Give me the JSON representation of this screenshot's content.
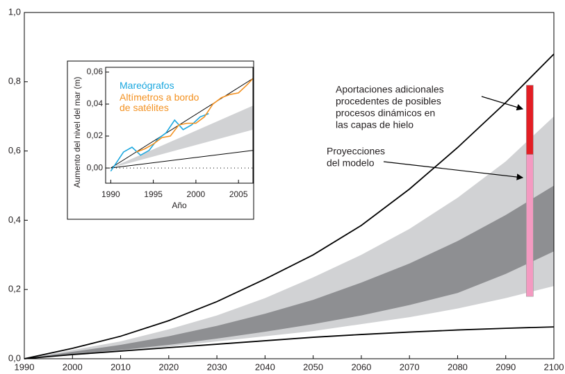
{
  "chart_data": [
    {
      "type": "line",
      "x": [
        1990,
        2000,
        2010,
        2020,
        2030,
        2040,
        2050,
        2060,
        2070,
        2080,
        2090,
        2100
      ],
      "xlim": [
        1990,
        2100
      ],
      "xticks": [
        1990,
        2000,
        2010,
        2020,
        2030,
        2040,
        2050,
        2060,
        2070,
        2080,
        2090,
        2100
      ],
      "ylim": [
        0,
        1
      ],
      "yticks": [
        {
          "value": 0,
          "label": "0,0"
        },
        {
          "value": 0.2,
          "label": "0,2"
        },
        {
          "value": 0.4,
          "label": "0,4"
        },
        {
          "value": 0.6,
          "label": "0,6"
        },
        {
          "value": 0.8,
          "label": "0,8"
        },
        {
          "value": 1,
          "label": "1,0"
        }
      ],
      "bands": [
        {
          "color": "#d1d2d4",
          "upper": [
            0,
            0.025,
            0.05,
            0.085,
            0.125,
            0.175,
            0.235,
            0.3,
            0.375,
            0.465,
            0.57,
            0.7
          ],
          "lower": [
            0,
            0.01,
            0.02,
            0.035,
            0.05,
            0.065,
            0.08,
            0.1,
            0.12,
            0.145,
            0.175,
            0.21
          ]
        },
        {
          "color": "#8e8f92",
          "upper": [
            0,
            0.02,
            0.04,
            0.065,
            0.095,
            0.13,
            0.17,
            0.22,
            0.275,
            0.34,
            0.415,
            0.5
          ],
          "lower": [
            0,
            0.013,
            0.025,
            0.04,
            0.058,
            0.078,
            0.1,
            0.125,
            0.155,
            0.19,
            0.245,
            0.31
          ]
        }
      ],
      "series": [
        {
          "color": "#000000",
          "values": [
            0,
            0.03,
            0.065,
            0.11,
            0.165,
            0.23,
            0.3,
            0.385,
            0.49,
            0.61,
            0.74,
            0.88
          ]
        },
        {
          "color": "#000000",
          "values": [
            0,
            0.012,
            0.022,
            0.032,
            0.042,
            0.052,
            0.062,
            0.07,
            0.077,
            0.083,
            0.088,
            0.092
          ]
        }
      ],
      "bars": [
        {
          "x": 2095,
          "low": 0.18,
          "high": 0.59,
          "color": "#f49ac1"
        },
        {
          "x": 2095,
          "low": 0.59,
          "high": 0.79,
          "color": "#e31e24"
        }
      ],
      "annotations": [
        {
          "lines": [
            "Aportaciones adicionales",
            "procedentes de posibles",
            "procesos dinámicos en",
            "las capas de hielo"
          ]
        },
        {
          "lines": [
            "Proyecciones",
            "del modelo"
          ]
        }
      ]
    },
    {
      "type": "line",
      "xlabel": "Año",
      "ylabel": "Aumento del nivel del mar (m)",
      "xlim": [
        1989.4,
        2006.7
      ],
      "xticks": [
        1990,
        1995,
        2000,
        2005
      ],
      "ylim": [
        -0.0095,
        0.063
      ],
      "yticks": [
        {
          "value": 0,
          "label": "0,00"
        },
        {
          "value": 0.02,
          "label": "0,02"
        },
        {
          "value": 0.04,
          "label": "0,04"
        },
        {
          "value": 0.06,
          "label": "0,06"
        }
      ],
      "bands": [
        {
          "color": "#d1d2d4",
          "x": [
            1990,
            2006.7
          ],
          "upper": [
            0,
            0.039
          ],
          "lower": [
            0,
            0.024
          ]
        }
      ],
      "series": [
        {
          "color": "#000000",
          "x": [
            1990,
            2006.7
          ],
          "values": [
            0,
            0.056
          ]
        },
        {
          "color": "#000000",
          "x": [
            1990,
            2006.7
          ],
          "values": [
            0,
            0.011
          ]
        },
        {
          "name": "Mareógrafos",
          "color": "#1aa7df",
          "x": [
            1990,
            1990.5,
            1991.5,
            1992.5,
            1993.5,
            1994.5,
            1995.5,
            1996.5,
            1997.5,
            1998.5,
            1999.5,
            2000.5,
            2001.5
          ],
          "values": [
            -0.002,
            0.002,
            0.01,
            0.013,
            0.008,
            0.011,
            0.018,
            0.022,
            0.03,
            0.024,
            0.027,
            0.032,
            0.034
          ]
        },
        {
          "name": "Altímetros a bordo de satélites",
          "color": "#f39120",
          "x": [
            1993,
            1994,
            1995,
            1996,
            1997,
            1998,
            1999,
            2000,
            2001,
            2002,
            2003,
            2004,
            2005,
            2006,
            2006.7
          ],
          "values": [
            0.01,
            0.012,
            0.015,
            0.019,
            0.02,
            0.027,
            0.028,
            0.028,
            0.032,
            0.04,
            0.044,
            0.046,
            0.047,
            0.052,
            0.056
          ]
        }
      ]
    }
  ]
}
